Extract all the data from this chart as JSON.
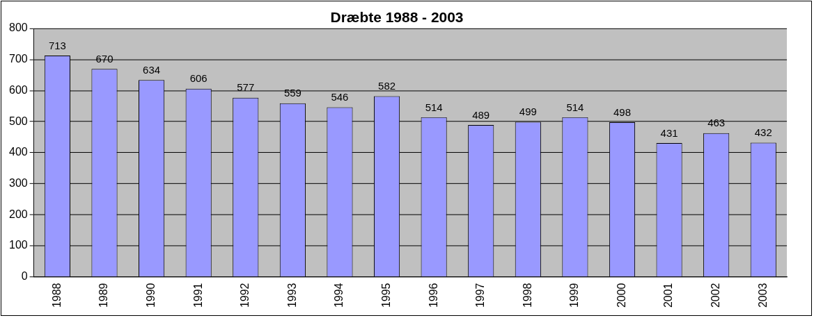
{
  "chart_data": {
    "type": "bar",
    "title": "Dræbte 1988 - 2003",
    "categories": [
      "1988",
      "1989",
      "1990",
      "1991",
      "1992",
      "1993",
      "1994",
      "1995",
      "1996",
      "1997",
      "1998",
      "1999",
      "2000",
      "2001",
      "2002",
      "2003"
    ],
    "values": [
      713,
      670,
      634,
      606,
      577,
      559,
      546,
      582,
      514,
      489,
      499,
      514,
      498,
      431,
      463,
      432
    ],
    "color": "#9999ff",
    "ylim": [
      0,
      800
    ],
    "yticks": [
      0,
      100,
      200,
      300,
      400,
      500,
      600,
      700,
      800
    ],
    "grid": "y",
    "data_labels": true,
    "legend": false
  }
}
